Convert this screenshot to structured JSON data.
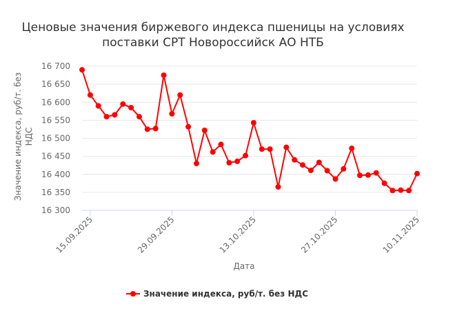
{
  "chart_data": {
    "type": "line",
    "title": [
      "Ценовые значения биржевого индекса пшеницы на условиях",
      "поставки СРТ Новороссийск АО НТБ"
    ],
    "xlabel": "Дата",
    "ylabel": [
      "Значение индекса, руб/т. без",
      "НДС"
    ],
    "ylim": [
      16300,
      16700
    ],
    "yticks": [
      "16 300",
      "16 350",
      "16 400",
      "16 450",
      "16 500",
      "16 550",
      "16 600",
      "16 650",
      "16 700"
    ],
    "ytick_values": [
      16300,
      16350,
      16400,
      16450,
      16500,
      16550,
      16600,
      16650,
      16700
    ],
    "xticks": [
      "15.09.2025",
      "29.09.2025",
      "13.10.2025",
      "27.10.2025",
      "10.11.2025"
    ],
    "xtick_index": [
      1,
      11,
      21,
      31,
      41
    ],
    "grid": true,
    "legend_position": "bottom-center",
    "color": "#ff0000",
    "series": [
      {
        "name": "Значение индекса, руб/т. без НДС",
        "values": [
          16690,
          16620,
          16590,
          16560,
          16565,
          16595,
          16585,
          16560,
          16525,
          16527,
          16675,
          16568,
          16620,
          16532,
          16430,
          16522,
          16462,
          16483,
          16432,
          16436,
          16452,
          16543,
          16470,
          16470,
          16365,
          16475,
          16440,
          16426,
          16411,
          16433,
          16410,
          16387,
          16415,
          16472,
          16397,
          16398,
          16404,
          16375,
          16355,
          16356,
          16355,
          16402
        ]
      }
    ]
  }
}
